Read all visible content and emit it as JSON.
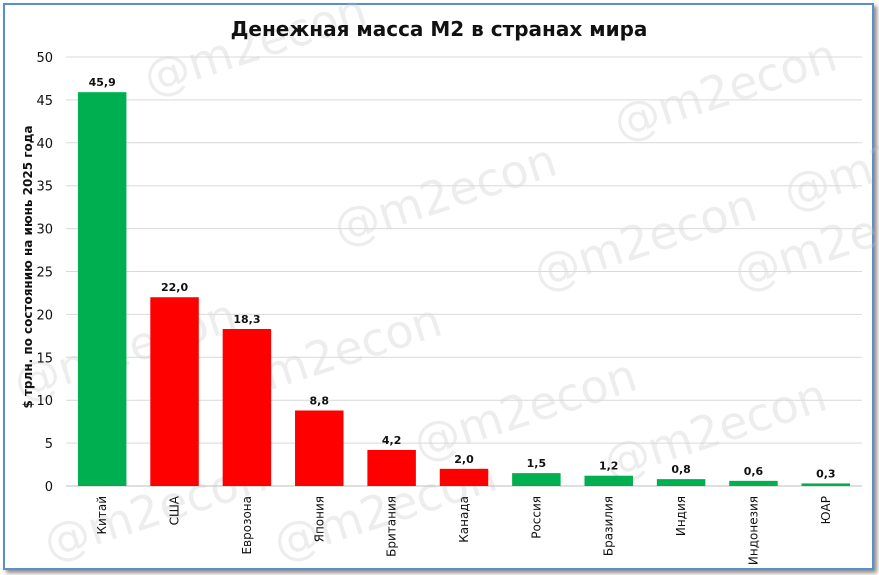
{
  "chart_data": {
    "type": "bar",
    "title": "Денежная масса М2 в странах мира",
    "ylabel": "$ трлн. по состоянию на июнь 2025 года",
    "xlabel": "",
    "ylim": [
      0,
      50
    ],
    "yticks": [
      0,
      5,
      10,
      15,
      20,
      25,
      30,
      35,
      40,
      45,
      50
    ],
    "grid": true,
    "watermark": "@m2econ",
    "categories": [
      "Китай",
      "США",
      "Еврозона",
      "Япония",
      "Британия",
      "Канада",
      "Россия",
      "Бразилия",
      "Индия",
      "Индонезия",
      "ЮАР"
    ],
    "values": [
      45.9,
      22.0,
      18.3,
      8.8,
      4.2,
      2.0,
      1.5,
      1.2,
      0.8,
      0.6,
      0.3
    ],
    "value_labels": [
      "45,9",
      "22,0",
      "18,3",
      "8,8",
      "4,2",
      "2,0",
      "1,5",
      "1,2",
      "0,8",
      "0,6",
      "0,3"
    ],
    "colors": [
      "#00b050",
      "#ff0000",
      "#ff0000",
      "#ff0000",
      "#ff0000",
      "#ff0000",
      "#00b050",
      "#00b050",
      "#00b050",
      "#00b050",
      "#00b050"
    ],
    "grid_color": "#d9d9d9"
  }
}
